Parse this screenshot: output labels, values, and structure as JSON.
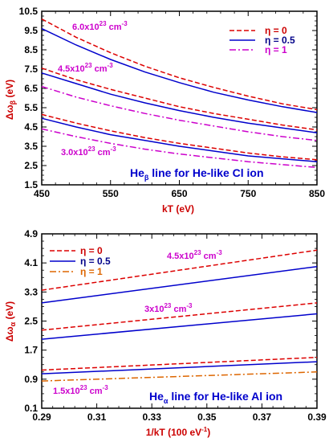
{
  "chart_data": [
    {
      "id": "top",
      "type": "line",
      "xlim": [
        450,
        850
      ],
      "ylim": [
        1.5,
        10.5
      ],
      "xticks": [
        "450",
        "550",
        "650",
        "750",
        "850"
      ],
      "yticks": [
        "1.5",
        "2.5",
        "3.5",
        "4.5",
        "5.5",
        "6.5",
        "7.5",
        "8.5",
        "9.5",
        "10.5"
      ],
      "xlabel": "kT (eV)",
      "ylabel_main": "Δω",
      "ylabel_sub": "β",
      "ylabel_unit": " (eV)",
      "caption_main": "He",
      "caption_sub": "β",
      "caption_rest": " line for He-like Cl ion",
      "legend": [
        {
          "label": "η = 0",
          "style": "dashed",
          "color": "#dd0000"
        },
        {
          "label": "η = 0.5",
          "style": "solid",
          "color": "#0000cc"
        },
        {
          "label": "η = 1",
          "style": "dashdot",
          "color": "#cc00cc"
        }
      ],
      "annotations": [
        {
          "text": "6.0x10",
          "exp": "23",
          "unit": " cm",
          "uexp": "-3"
        },
        {
          "text": "4.5x10",
          "exp": "23",
          "unit": " cm",
          "uexp": "-3"
        },
        {
          "text": "3.0x10",
          "exp": "23",
          "unit": " cm",
          "uexp": "-3"
        }
      ],
      "x": [
        450,
        500,
        550,
        600,
        650,
        700,
        750,
        800,
        850
      ],
      "series": [
        {
          "style": "dashed",
          "color": "#dd0000",
          "values": [
            10.1,
            9.15,
            8.35,
            7.65,
            7.05,
            6.55,
            6.1,
            5.7,
            5.4
          ]
        },
        {
          "style": "solid",
          "color": "#0000cc",
          "values": [
            9.6,
            8.75,
            8.0,
            7.35,
            6.8,
            6.3,
            5.9,
            5.55,
            5.25
          ]
        },
        {
          "style": "dashed",
          "color": "#dd0000",
          "values": [
            7.55,
            6.95,
            6.45,
            6.0,
            5.55,
            5.2,
            4.9,
            4.6,
            4.35
          ]
        },
        {
          "style": "solid",
          "color": "#0000cc",
          "values": [
            7.3,
            6.75,
            6.2,
            5.75,
            5.35,
            5.0,
            4.7,
            4.45,
            4.2
          ]
        },
        {
          "style": "dashdot",
          "color": "#cc00cc",
          "values": [
            6.6,
            6.05,
            5.6,
            5.2,
            4.85,
            4.55,
            4.25,
            4.0,
            3.8
          ]
        },
        {
          "style": "dashed",
          "color": "#dd0000",
          "values": [
            5.15,
            4.7,
            4.3,
            3.95,
            3.65,
            3.4,
            3.15,
            2.95,
            2.8
          ]
        },
        {
          "style": "solid",
          "color": "#0000cc",
          "values": [
            4.95,
            4.5,
            4.1,
            3.8,
            3.5,
            3.25,
            3.0,
            2.85,
            2.7
          ]
        },
        {
          "style": "dashdot",
          "color": "#cc00cc",
          "values": [
            4.4,
            4.0,
            3.65,
            3.35,
            3.1,
            2.9,
            2.7,
            2.55,
            2.4
          ]
        }
      ]
    },
    {
      "id": "bottom",
      "type": "line",
      "xlim": [
        0.29,
        0.39
      ],
      "ylim": [
        0.1,
        4.9
      ],
      "xticks": [
        "0.29",
        "0.31",
        "0.33",
        "0.35",
        "0.37",
        "0.39"
      ],
      "yticks": [
        "0.1",
        "0.9",
        "1.7",
        "2.5",
        "3.3",
        "4.1",
        "4.9"
      ],
      "xlabel_main": "1/kT (100 eV",
      "xlabel_exp": "-1",
      "xlabel_end": ")",
      "ylabel_main": "Δω",
      "ylabel_sub": "α",
      "ylabel_unit": " (eV)",
      "caption_main": "He",
      "caption_sub": "α",
      "caption_rest": " line for He-like Al ion",
      "legend": [
        {
          "label": "η = 0",
          "style": "dashed",
          "color": "#dd0000"
        },
        {
          "label": "η = 0.5",
          "style": "solid",
          "color": "#0000cc"
        },
        {
          "label": "η = 1",
          "style": "dashdot",
          "color": "#dd6600"
        }
      ],
      "annotations": [
        {
          "text": "4.5x10",
          "exp": "23",
          "unit": " cm",
          "uexp": "-3"
        },
        {
          "text": "3x10",
          "exp": "23",
          "unit": " cm",
          "uexp": "-3"
        },
        {
          "text": "1.5x10",
          "exp": "23",
          "unit": " cm",
          "uexp": "-3"
        }
      ],
      "x": [
        0.29,
        0.39
      ],
      "series": [
        {
          "style": "dashed",
          "color": "#dd0000",
          "values": [
            3.35,
            4.45
          ]
        },
        {
          "style": "solid",
          "color": "#0000cc",
          "values": [
            3.0,
            4.0
          ]
        },
        {
          "style": "dashed",
          "color": "#dd0000",
          "values": [
            2.25,
            3.0
          ]
        },
        {
          "style": "solid",
          "color": "#0000cc",
          "values": [
            2.0,
            2.7
          ]
        },
        {
          "style": "dashed",
          "color": "#dd0000",
          "values": [
            1.15,
            1.5
          ]
        },
        {
          "style": "solid",
          "color": "#0000cc",
          "values": [
            1.05,
            1.38
          ]
        },
        {
          "style": "dashdot",
          "color": "#dd6600",
          "values": [
            0.85,
            1.1
          ]
        }
      ]
    }
  ]
}
